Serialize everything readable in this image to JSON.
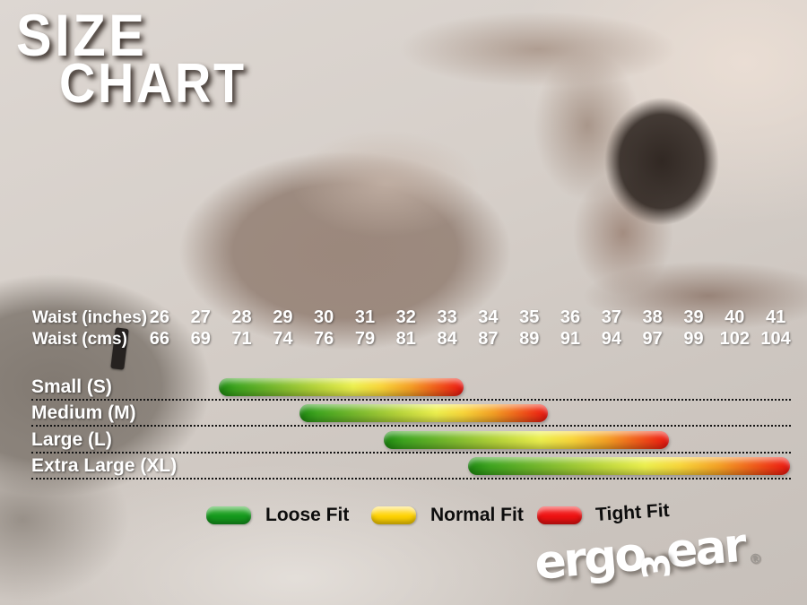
{
  "title": {
    "line1": "SIZE",
    "line2": "CHART"
  },
  "chart_data": {
    "type": "bar",
    "subtype": "horizontal-range-bars",
    "title": "SIZE CHART",
    "x_axis": {
      "label_primary": "Waist (inches)",
      "ticks_primary": [
        26,
        27,
        28,
        29,
        30,
        31,
        32,
        33,
        34,
        35,
        36,
        37,
        38,
        39,
        40,
        41
      ],
      "label_secondary": "Waist (cms)",
      "ticks_secondary": [
        66,
        69,
        71,
        74,
        76,
        79,
        81,
        84,
        87,
        89,
        91,
        94,
        97,
        99,
        102,
        104
      ],
      "range_inches": [
        26,
        41
      ]
    },
    "series": [
      {
        "name": "Small (S)",
        "waist_inches_range": [
          27.45,
          33.4
        ]
      },
      {
        "name": "Medium (M)",
        "waist_inches_range": [
          29.4,
          35.45
        ]
      },
      {
        "name": "Large (L)",
        "waist_inches_range": [
          31.45,
          38.4
        ]
      },
      {
        "name": "Extra Large (XL)",
        "waist_inches_range": [
          33.5,
          41.35
        ]
      }
    ],
    "bar_gradient_meaning": "green = Loose Fit, yellow = Normal Fit, red = Tight Fit",
    "legend": [
      {
        "label": "Loose Fit",
        "color": "#159a1d",
        "color_top": "#4db84b"
      },
      {
        "label": "Normal Fit",
        "color": "#ffd303",
        "color_top": "#ffe77a"
      },
      {
        "label": "Tight Fit",
        "color": "#ee1212",
        "color_top": "#f74040"
      }
    ],
    "legend_position": "bottom",
    "grid": "dotted-row-separators"
  },
  "brand": {
    "part1": "ergo",
    "w_glyph": "3",
    "part2": "ear",
    "registered": "®"
  },
  "colors": {
    "bar_green": "#1e8a10",
    "bar_yellow": "#edf04e",
    "bar_red": "#ee1511",
    "text_light": "#ffffff",
    "text_dark": "#0d0d0d",
    "separator": "#141414"
  }
}
